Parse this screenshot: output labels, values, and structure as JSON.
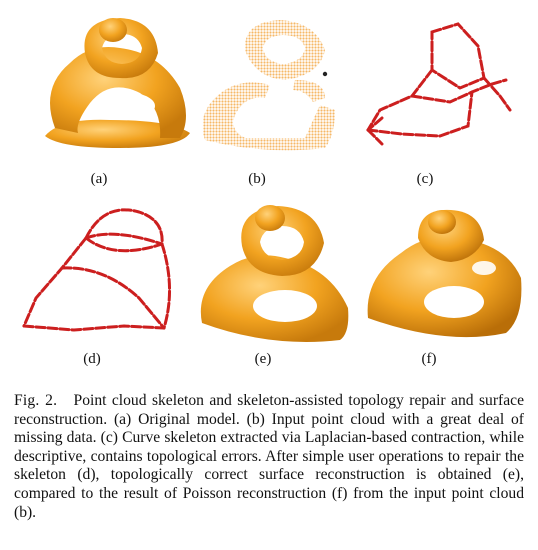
{
  "figure": {
    "panels": [
      {
        "id": "a",
        "label": "(a)"
      },
      {
        "id": "b",
        "label": "(b)"
      },
      {
        "id": "c",
        "label": "(c)"
      },
      {
        "id": "d",
        "label": "(d)"
      },
      {
        "id": "e",
        "label": "(e)"
      },
      {
        "id": "f",
        "label": "(f)"
      }
    ],
    "caption": {
      "number": "Fig. 2.",
      "text": "Point cloud skeleton and skeleton-assisted topology repair and surface reconstruction. (a) Original model. (b) Input point cloud with a great deal of missing data. (c) Curve skeleton extracted via Laplacian-based contraction, while descriptive, contains topological errors. After simple user operations to repair the skeleton (d), topologically correct surface reconstruction is obtained (e), compared to the result of Poisson reconstruction (f) from the input point cloud (b)."
    },
    "colors": {
      "model_orange": "#f2a320",
      "model_shadow": "#c77a0c",
      "pointcloud": "#f6b866",
      "skeleton_red": "#cc1f1f"
    }
  }
}
